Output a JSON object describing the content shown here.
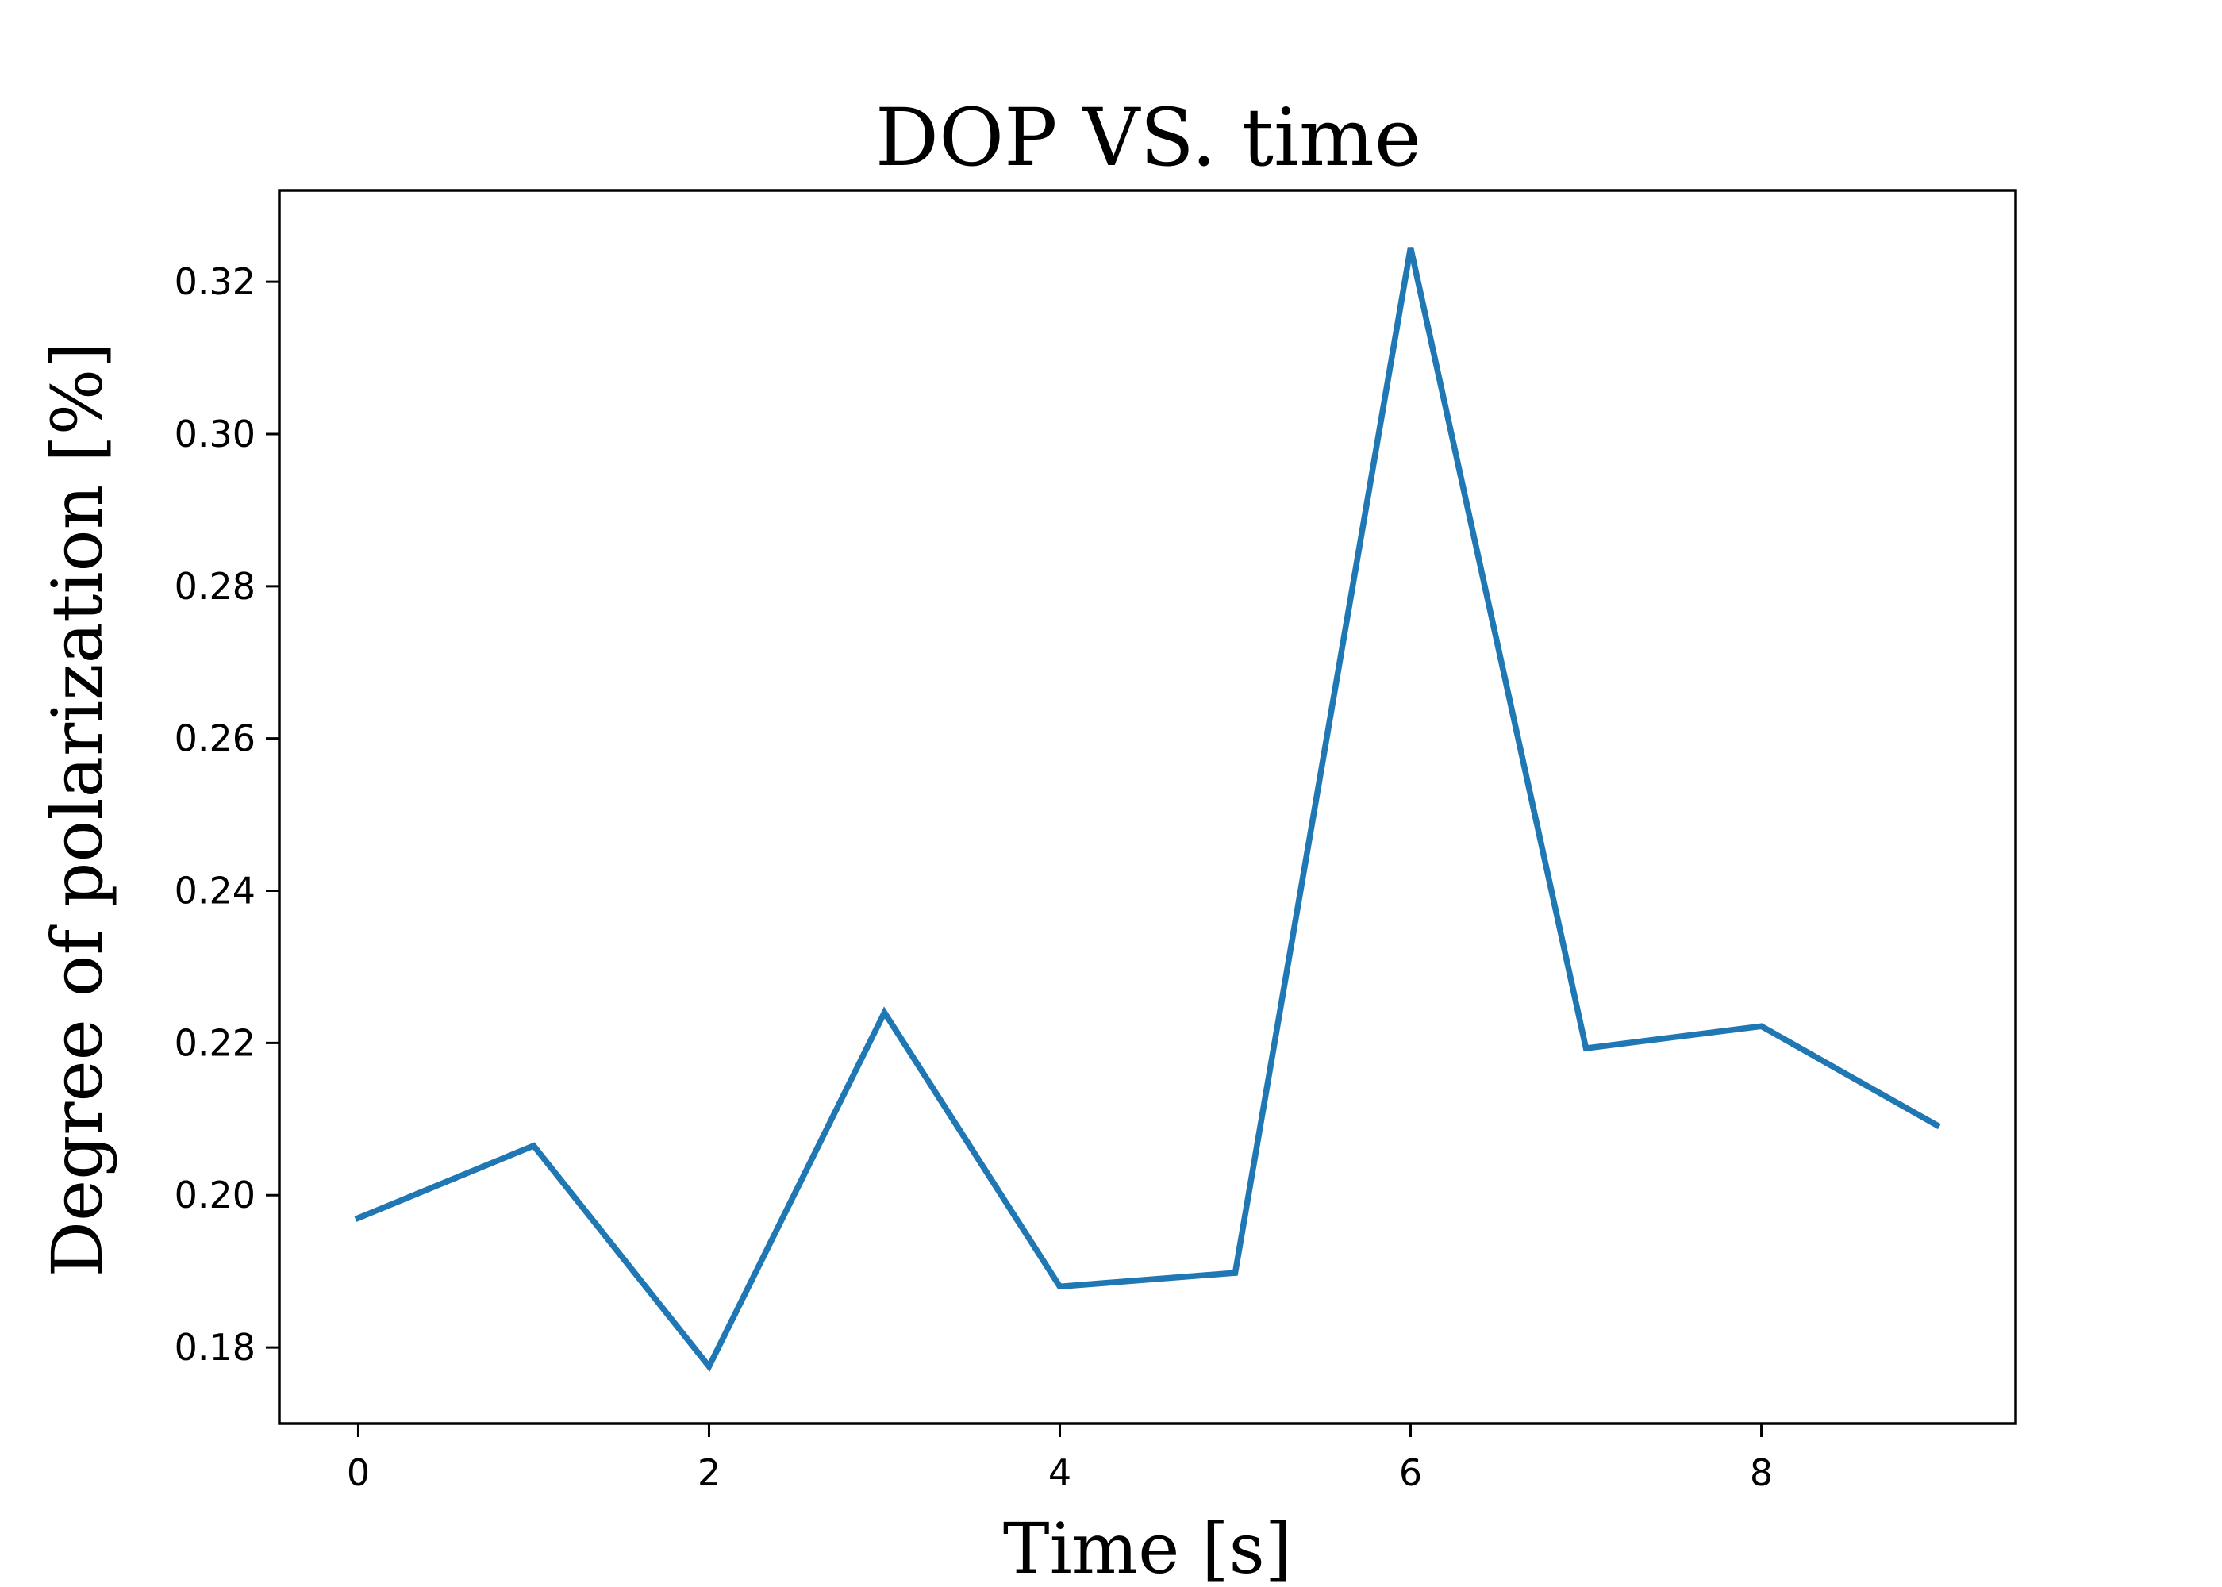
{
  "chart_data": {
    "type": "line",
    "title": "DOP VS. time",
    "xlabel": "Time [s]",
    "ylabel": "Degree of polarization [%]",
    "xlim": [
      -0.45,
      9.45
    ],
    "ylim": [
      0.17,
      0.332
    ],
    "xticks": [
      0,
      2,
      4,
      6,
      8
    ],
    "xtick_labels": [
      "0",
      "2",
      "4",
      "6",
      "8"
    ],
    "yticks": [
      0.18,
      0.2,
      0.22,
      0.24,
      0.26,
      0.28,
      0.3,
      0.32
    ],
    "ytick_labels": [
      "0.18",
      "0.20",
      "0.22",
      "0.24",
      "0.26",
      "0.28",
      "0.30",
      "0.32"
    ],
    "grid": false,
    "legend": "none",
    "series": [
      {
        "color": "#1f77b4",
        "x": [
          0,
          1,
          2,
          3,
          4,
          5,
          6,
          7,
          8,
          9
        ],
        "y": [
          0.197,
          0.2065,
          0.1775,
          0.224,
          0.188,
          0.1898,
          0.3245,
          0.2193,
          0.2222,
          0.2092
        ]
      }
    ]
  }
}
